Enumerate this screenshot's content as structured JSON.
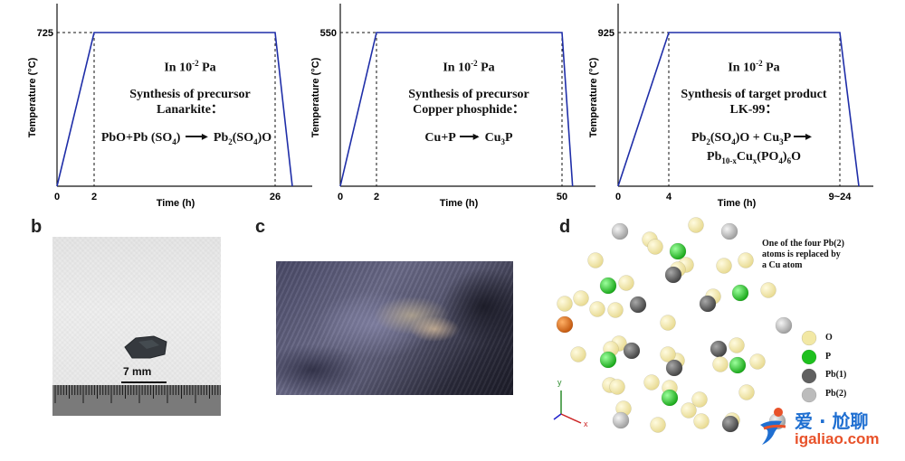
{
  "panel_letters": {
    "b": "b",
    "c": "c",
    "d": "d"
  },
  "chart_data": [
    {
      "type": "line",
      "title": "",
      "xlabel": "Time (h)",
      "ylabel": "Temperature (°C)",
      "x": [
        0,
        2,
        26,
        28
      ],
      "y": [
        0,
        725,
        725,
        0
      ],
      "xticks": [
        "0",
        "2",
        "26"
      ],
      "ytick": "725",
      "text": {
        "pressure_pre": "In 10",
        "pressure_exp": "-2",
        "pressure_post": " Pa",
        "heading": "Synthesis of precursor",
        "subheading": "Lanarkite：",
        "eq_left": "PbO+Pb (SO",
        "eq_right": "Pb"
      }
    },
    {
      "type": "line",
      "title": "",
      "xlabel": "Time (h)",
      "ylabel": "Temperature (°C)",
      "x": [
        0,
        2,
        50,
        52
      ],
      "y": [
        0,
        550,
        550,
        0
      ],
      "xticks": [
        "0",
        "2",
        "50"
      ],
      "ytick": "550",
      "text": {
        "pressure_pre": "In 10",
        "pressure_exp": "-2",
        "pressure_post": " Pa",
        "heading": "Synthesis of precursor",
        "subheading": "Copper phosphide：",
        "eq_left": "Cu+P",
        "eq_right": "Cu"
      }
    },
    {
      "type": "line",
      "title": "",
      "xlabel": "Time (h)",
      "ylabel": "Temperature (°C)",
      "x": [
        0,
        4,
        24,
        26
      ],
      "y": [
        0,
        925,
        925,
        0
      ],
      "xticks": [
        "0",
        "4",
        "9~24"
      ],
      "ytick": "925",
      "text": {
        "pressure_pre": "In 10",
        "pressure_exp": "-2",
        "pressure_post": " Pa",
        "heading": "Synthesis of target product",
        "subheading": "LK-99：",
        "eq_left": "Pb",
        "eq_right": "Pb"
      }
    }
  ],
  "scale_bar": "7 mm",
  "structure": {
    "annotation": [
      "One of the four Pb(2)",
      "atoms is replaced by",
      "a Cu atom"
    ],
    "legend": [
      {
        "label": "O",
        "color": "#f2e8a4"
      },
      {
        "label": "P",
        "color": "#1ec01e"
      },
      {
        "label": "Pb(1)",
        "color": "#606060"
      },
      {
        "label": "Pb(2)",
        "color": "#bcbcbc"
      }
    ],
    "cu_color": "#d86a12",
    "axes": {
      "y": "y",
      "x": "x"
    }
  },
  "watermark": {
    "brand": "爱 · 尬聊",
    "url": "igaliao.com"
  }
}
